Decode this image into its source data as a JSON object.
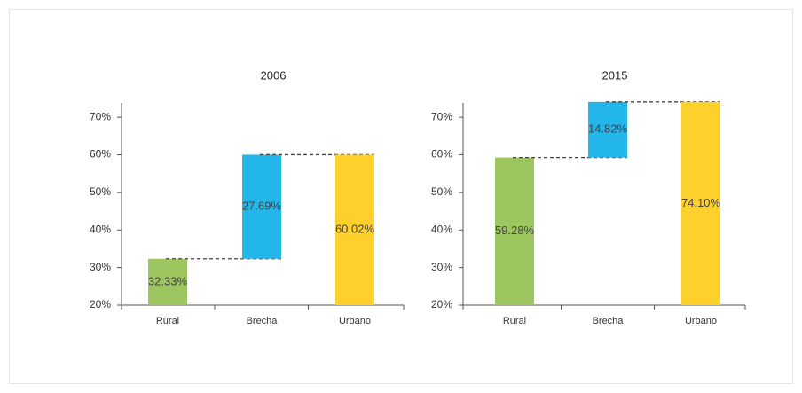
{
  "chart_data": [
    {
      "type": "waterfall",
      "title": "2006",
      "categories": [
        "Rural",
        "Brecha",
        "Urbano"
      ],
      "values": [
        32.33,
        27.69,
        60.02
      ],
      "value_labels": [
        "32.33%",
        "27.69%",
        "60.02%"
      ],
      "colors": [
        "#9dc660",
        "#22b6ea",
        "#fdd02c"
      ],
      "ylim": [
        20,
        75
      ],
      "yticks": [
        {
          "value": 20,
          "label": "20%"
        },
        {
          "value": 30,
          "label": "30%"
        },
        {
          "value": 40,
          "label": "40%"
        },
        {
          "value": 50,
          "label": "50%"
        },
        {
          "value": 60,
          "label": "60%"
        },
        {
          "value": 70,
          "label": "70%"
        }
      ]
    },
    {
      "type": "waterfall",
      "title": "2015",
      "categories": [
        "Rural",
        "Brecha",
        "Urbano"
      ],
      "values": [
        59.28,
        14.82,
        74.1
      ],
      "value_labels": [
        "59.28%",
        "14.82%",
        "74.10%"
      ],
      "colors": [
        "#9dc660",
        "#22b6ea",
        "#fdd02c"
      ],
      "ylim": [
        20,
        75
      ],
      "yticks": [
        {
          "value": 20,
          "label": "20%"
        },
        {
          "value": 30,
          "label": "30%"
        },
        {
          "value": 40,
          "label": "40%"
        },
        {
          "value": 50,
          "label": "50%"
        },
        {
          "value": 60,
          "label": "60%"
        },
        {
          "value": 70,
          "label": "70%"
        }
      ]
    }
  ]
}
